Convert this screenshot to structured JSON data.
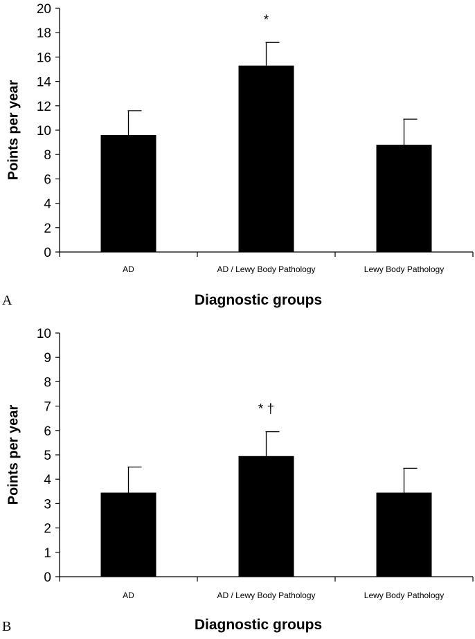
{
  "chart_data": [
    {
      "panel_label": "A",
      "type": "bar",
      "categories": [
        "AD",
        "AD / Lewy Body Pathology",
        "Lewy Body Pathology"
      ],
      "values": [
        9.6,
        15.3,
        8.8
      ],
      "error_upper": [
        2.0,
        1.9,
        2.1
      ],
      "annotations": [
        "",
        "*",
        ""
      ],
      "xlabel": "Diagnostic groups",
      "ylabel": "Points per year",
      "ylim": [
        0,
        20
      ],
      "yticks": [
        "0",
        "2",
        "4",
        "6",
        "8",
        "10",
        "12",
        "14",
        "16",
        "18",
        "20"
      ],
      "bar_color": "#000000",
      "grid": false
    },
    {
      "panel_label": "B",
      "type": "bar",
      "categories": [
        "AD",
        "AD / Lewy Body Pathology",
        "Lewy Body Pathology"
      ],
      "values": [
        3.45,
        4.95,
        3.45
      ],
      "error_upper": [
        1.05,
        1.0,
        1.0
      ],
      "annotations": [
        "",
        "*  †",
        ""
      ],
      "xlabel": "Diagnostic groups",
      "ylabel": "Points per year",
      "ylim": [
        0,
        10
      ],
      "yticks": [
        "0",
        "1",
        "2",
        "3",
        "4",
        "5",
        "6",
        "7",
        "8",
        "9",
        "10"
      ],
      "bar_color": "#000000",
      "grid": false
    }
  ]
}
